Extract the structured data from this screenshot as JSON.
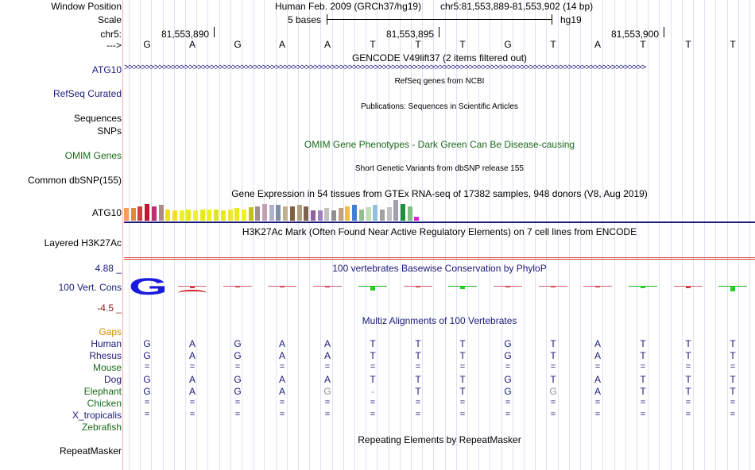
{
  "colors": {
    "navy": "#1a1a7a",
    "green": "#1a6a1a",
    "gaps_orange": "#d08a00",
    "dark_red": "#8b1a1a",
    "grid": "#dde3f0",
    "separator": "#f3b0b0"
  },
  "header": {
    "window_position_label": "Window Position",
    "assembly": "Human Feb. 2009 (GRCh37/hg19)",
    "position": "chr5:81,553,889-81,553,902 (14 bp)",
    "scale_label": "Scale",
    "scale_text": "5 bases",
    "scale_db": "hg19",
    "chrom_label": "chr5:",
    "coords": [
      "81,553,890",
      "81,553,895",
      "81,553,900"
    ],
    "strand_label": "--->"
  },
  "sequence": [
    "G",
    "A",
    "G",
    "A",
    "A",
    "T",
    "T",
    "T",
    "G",
    "T",
    "A",
    "T",
    "T",
    "T"
  ],
  "tracks": {
    "gencode": {
      "title": "GENCODE V49lift37 (2 items filtered out)",
      "label": "ATG10",
      "arrows": ">>>>>>>>>>>>>>>>>>>>>>>>>>>>>>>>>>>>>>>>>>>>>>>>>>>>>>>>>>>>>>>>>>>>>>>>>>>>>>>>>>>>>>>>>>>>>>>>>>>>>>>>>>>>>>>>>>>>>>>>>"
    },
    "refseq": {
      "title": "RefSeq genes from NCBI",
      "label": "RefSeq Curated"
    },
    "publications": {
      "title": "Publications: Sequences in Scientific Articles",
      "label1": "Sequences",
      "label2": "SNPs"
    },
    "omim": {
      "title": "OMIM Gene Phenotypes - Dark Green Can Be Disease-causing",
      "label": "OMIM Genes"
    },
    "dbsnp": {
      "title": "Short Genetic Variants from dbSNP release 155",
      "label": "Common dbSNP(155)"
    },
    "gtex": {
      "title": "Gene Expression in 54 tissues from GTEx RNA-seq of 17382 samples, 948 donors (V8, Aug 2019)",
      "label": "ATG10",
      "bars": [
        {
          "color": "#f0a060",
          "value": 0.6
        },
        {
          "color": "#e08a40",
          "value": 0.62
        },
        {
          "color": "#d04040",
          "value": 0.7
        },
        {
          "color": "#c01830",
          "value": 0.8
        },
        {
          "color": "#c03070",
          "value": 0.7
        },
        {
          "color": "#b08a8a",
          "value": 0.75
        },
        {
          "color": "#f0e020",
          "value": 0.55
        },
        {
          "color": "#f0e020",
          "value": 0.5
        },
        {
          "color": "#f0f020",
          "value": 0.5
        },
        {
          "color": "#e8e820",
          "value": 0.52
        },
        {
          "color": "#f0f030",
          "value": 0.5
        },
        {
          "color": "#e8e820",
          "value": 0.55
        },
        {
          "color": "#f0f020",
          "value": 0.55
        },
        {
          "color": "#e0e030",
          "value": 0.55
        },
        {
          "color": "#e8e820",
          "value": 0.5
        },
        {
          "color": "#f0e830",
          "value": 0.55
        },
        {
          "color": "#e8e820",
          "value": 0.6
        },
        {
          "color": "#f0f020",
          "value": 0.55
        },
        {
          "color": "#c0c020",
          "value": 0.65
        },
        {
          "color": "#a09090",
          "value": 0.7
        },
        {
          "color": "#c0a0b0",
          "value": 0.8
        },
        {
          "color": "#b0b0d0",
          "value": 0.75
        },
        {
          "color": "#8090a0",
          "value": 0.75
        },
        {
          "color": "#c0b090",
          "value": 0.7
        },
        {
          "color": "#806040",
          "value": 0.7
        },
        {
          "color": "#b0a080",
          "value": 0.75
        },
        {
          "color": "#806050",
          "value": 0.7
        },
        {
          "color": "#9060a0",
          "value": 0.5
        },
        {
          "color": "#a080c0",
          "value": 0.5
        },
        {
          "color": "#c0c0c0",
          "value": 0.6
        },
        {
          "color": "#909090",
          "value": 0.5
        },
        {
          "color": "#c0a080",
          "value": 0.6
        },
        {
          "color": "#f0c040",
          "value": 0.7
        },
        {
          "color": "#4080d0",
          "value": 0.75
        },
        {
          "color": "#90c090",
          "value": 0.55
        },
        {
          "color": "#c0e0b0",
          "value": 0.65
        },
        {
          "color": "#90c0e0",
          "value": 0.75
        },
        {
          "color": "#a0a0a0",
          "value": 0.55
        },
        {
          "color": "#c0c0c0",
          "value": 0.65
        },
        {
          "color": "#a0a0b0",
          "value": 1.0
        },
        {
          "color": "#209040",
          "value": 0.8
        },
        {
          "color": "#80c080",
          "value": 0.7
        },
        {
          "color": "#e020e0",
          "value": 0.2
        }
      ]
    },
    "h3k27ac": {
      "title": "H3K27Ac Mark (Often Found Near Active Regulatory Elements) on 7 cell lines from ENCODE",
      "label": "Layered H3K27Ac"
    },
    "phylop": {
      "title": "100 vertebrates Basewise Conservation by PhyloP",
      "label": "100 Vert. Cons",
      "ymax": "4.88 _",
      "ymin": "-4.5 _",
      "scores": [
        3.2,
        -0.4,
        -0.2,
        -0.2,
        -0.2,
        1.6,
        -0.1,
        0.9,
        -0.3,
        -0.1,
        -0.2,
        0.8,
        -0.5,
        1.8
      ],
      "logo_letter": "G"
    },
    "multiz": {
      "title": "Multiz Alignments of 100 Vertebrates",
      "gaps_label": "Gaps",
      "species": [
        {
          "name": "Human",
          "color": "#1a1a7a",
          "bases": [
            "G",
            "A",
            "G",
            "A",
            "A",
            "T",
            "T",
            "T",
            "G",
            "T",
            "A",
            "T",
            "T",
            "T"
          ]
        },
        {
          "name": "Rhesus",
          "color": "#1a1a7a",
          "bases": [
            "G",
            "A",
            "G",
            "A",
            "A",
            "T",
            "T",
            "T",
            "G",
            "T",
            "A",
            "T",
            "T",
            "T"
          ]
        },
        {
          "name": "Mouse",
          "color": "#1a6a1a",
          "bases": [
            "=",
            "=",
            "=",
            "=",
            "=",
            "=",
            "=",
            "=",
            "=",
            "=",
            "=",
            "=",
            "=",
            "="
          ]
        },
        {
          "name": "Dog",
          "color": "#1a1a7a",
          "bases": [
            "G",
            "A",
            "G",
            "A",
            "A",
            "T",
            "T",
            "T",
            "G",
            "T",
            "A",
            "T",
            "T",
            "T"
          ]
        },
        {
          "name": "Elephant",
          "color": "#1a6a1a",
          "bases": [
            "G",
            "A",
            "G",
            "A",
            "G",
            "-",
            "T",
            "T",
            "G",
            "G",
            "A",
            "T",
            "T",
            "T"
          ]
        },
        {
          "name": "Chicken",
          "color": "#1a6a1a",
          "bases": [
            "=",
            "=",
            "=",
            "=",
            "=",
            "=",
            "=",
            "=",
            "=",
            "=",
            "=",
            "=",
            "=",
            "="
          ]
        },
        {
          "name": "X_tropicalis",
          "color": "#1a1a7a",
          "bases": [
            "=",
            "=",
            "=",
            "=",
            "=",
            "=",
            "=",
            "=",
            "=",
            "=",
            "=",
            "=",
            "=",
            "="
          ]
        },
        {
          "name": "Zebrafish",
          "color": "#1a6a1a",
          "bases": [
            "",
            "",
            "",
            "",
            "",
            "",
            "",
            "",
            "",
            "",
            "",
            "",
            "",
            ""
          ]
        }
      ],
      "mismatch_indices": {
        "Elephant": [
          4,
          5,
          9
        ]
      }
    },
    "repeatmasker": {
      "title": "Repeating Elements by RepeatMasker",
      "label": "RepeatMasker"
    }
  }
}
